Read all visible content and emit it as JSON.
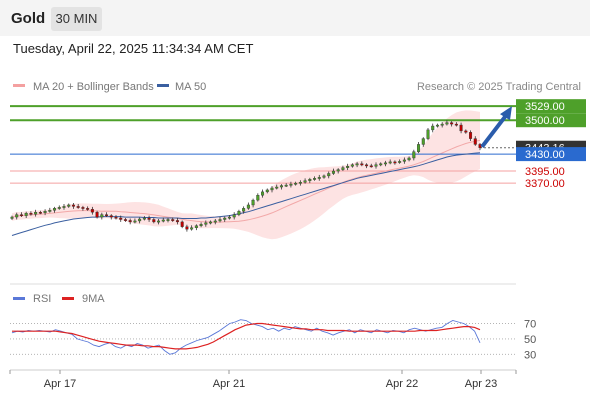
{
  "header": {
    "symbol": "Gold",
    "timeframe": "30 MIN"
  },
  "datetime": "Tuesday, April 22, 2025 11:34:34 AM CET",
  "legend": {
    "items": [
      {
        "label": "MA 20 + Bollinger Bands",
        "color": "#f4a0a0"
      },
      {
        "label": "MA 50",
        "color": "#3a5fa0"
      }
    ],
    "credit": "Research © 2025 Trading Central"
  },
  "colors": {
    "support": "#f4a0a0",
    "support_text": "#cc0000",
    "resistance": "#4ea02a",
    "pivot": "#2a6acf",
    "current": "#333333",
    "candle_up": "#4ea02a",
    "candle_down": "#c00000",
    "band_fill": "#fde3e3",
    "ma50": "#3a5fa0",
    "rsi": "#5a78d8",
    "rsi_ma": "#dd2222"
  },
  "chart_data": [
    {
      "type": "candlestick",
      "title": "Gold",
      "x_ticks": [
        "Apr 17",
        "Apr 21",
        "Apr 22",
        "Apr 23"
      ],
      "ylim": [
        3170,
        3550
      ],
      "levels": [
        {
          "name": "resistance-2",
          "value": 3529.0,
          "label": "3529.00",
          "kind": "resistance"
        },
        {
          "name": "resistance-1",
          "value": 3500.0,
          "label": "3500.00",
          "kind": "resistance"
        },
        {
          "name": "current",
          "value": 3443.16,
          "label": "3443.16",
          "kind": "current"
        },
        {
          "name": "pivot",
          "value": 3430.0,
          "label": "3430.00",
          "kind": "pivot"
        },
        {
          "name": "support-1",
          "value": 3395.0,
          "label": "3395.00",
          "kind": "support"
        },
        {
          "name": "support-2",
          "value": 3370.0,
          "label": "3370.00",
          "kind": "support"
        }
      ],
      "arrow": {
        "from": 3445,
        "to": 3529,
        "direction": "up"
      },
      "closes": [
        3300,
        3305,
        3303,
        3308,
        3306,
        3310,
        3309,
        3312,
        3314,
        3318,
        3320,
        3322,
        3325,
        3322,
        3320,
        3318,
        3316,
        3310,
        3300,
        3305,
        3303,
        3300,
        3298,
        3295,
        3293,
        3290,
        3292,
        3296,
        3298,
        3295,
        3290,
        3292,
        3294,
        3295,
        3293,
        3290,
        3280,
        3275,
        3278,
        3282,
        3285,
        3288,
        3290,
        3292,
        3295,
        3298,
        3300,
        3305,
        3312,
        3318,
        3325,
        3335,
        3345,
        3352,
        3356,
        3360,
        3362,
        3365,
        3366,
        3368,
        3370,
        3372,
        3375,
        3378,
        3380,
        3382,
        3385,
        3390,
        3395,
        3398,
        3402,
        3405,
        3408,
        3410,
        3408,
        3406,
        3405,
        3408,
        3410,
        3412,
        3414,
        3413,
        3415,
        3418,
        3422,
        3435,
        3450,
        3462,
        3480,
        3488,
        3490,
        3492,
        3495,
        3492,
        3490,
        3478,
        3475,
        3462,
        3450,
        3443.16
      ],
      "ma50": [
        3262,
        3265,
        3268,
        3271,
        3274,
        3277,
        3280,
        3283,
        3285,
        3288,
        3290,
        3292,
        3294,
        3296,
        3297,
        3298,
        3299,
        3300,
        3300,
        3301,
        3301,
        3301,
        3301,
        3301,
        3300,
        3300,
        3300,
        3300,
        3299,
        3299,
        3299,
        3298,
        3298,
        3298,
        3298,
        3298,
        3297,
        3297,
        3297,
        3297,
        3298,
        3298,
        3299,
        3300,
        3301,
        3302,
        3303,
        3305,
        3307,
        3309,
        3311,
        3314,
        3317,
        3320,
        3323,
        3326,
        3329,
        3332,
        3335,
        3338,
        3341,
        3344,
        3347,
        3350,
        3353,
        3356,
        3359,
        3362,
        3365,
        3368,
        3371,
        3374,
        3377,
        3380,
        3382,
        3384,
        3386,
        3388,
        3390,
        3392,
        3394,
        3396,
        3398,
        3400,
        3402,
        3404,
        3406,
        3409,
        3412,
        3415,
        3418,
        3421,
        3424,
        3426,
        3428,
        3429,
        3430,
        3431,
        3432,
        3433
      ]
    },
    {
      "type": "line",
      "title": "RSI",
      "series": [
        {
          "name": "RSI",
          "values": [
            58,
            60,
            59,
            61,
            60,
            61,
            60,
            59,
            62,
            60,
            58,
            56,
            50,
            48,
            46,
            42,
            40,
            43,
            45,
            40,
            38,
            42,
            40,
            44,
            42,
            38,
            40,
            42,
            35,
            30,
            32,
            38,
            42,
            45,
            48,
            50,
            52,
            56,
            60,
            65,
            70,
            72,
            75,
            74,
            70,
            68,
            66,
            62,
            64,
            60,
            64,
            62,
            66,
            64,
            62,
            60,
            64,
            60,
            58,
            55,
            58,
            60,
            62,
            58,
            62,
            60,
            58,
            62,
            60,
            58,
            61,
            60,
            58,
            62,
            64,
            62,
            60,
            62,
            64,
            65,
            70,
            74,
            72,
            70,
            66,
            60,
            45
          ]
        },
        {
          "name": "9MA",
          "values": [
            60,
            60,
            60,
            60,
            60,
            60,
            60,
            60,
            60,
            59,
            58,
            57,
            55,
            53,
            51,
            49,
            47,
            46,
            45,
            44,
            43,
            42,
            42,
            42,
            41,
            41,
            40,
            40,
            39,
            38,
            37,
            37,
            37,
            38,
            39,
            41,
            43,
            46,
            50,
            54,
            58,
            62,
            65,
            68,
            69,
            70,
            70,
            69,
            68,
            67,
            66,
            65,
            64,
            63,
            63,
            62,
            62,
            62,
            61,
            61,
            61,
            61,
            60,
            60,
            60,
            60,
            60,
            60,
            60,
            60,
            60,
            60,
            60,
            60,
            60,
            61,
            61,
            61,
            61,
            62,
            63,
            64,
            65,
            66,
            66,
            65,
            62
          ]
        }
      ],
      "ylim": [
        20,
        85
      ],
      "y_ticks": [
        "70",
        "50",
        "30"
      ]
    }
  ]
}
